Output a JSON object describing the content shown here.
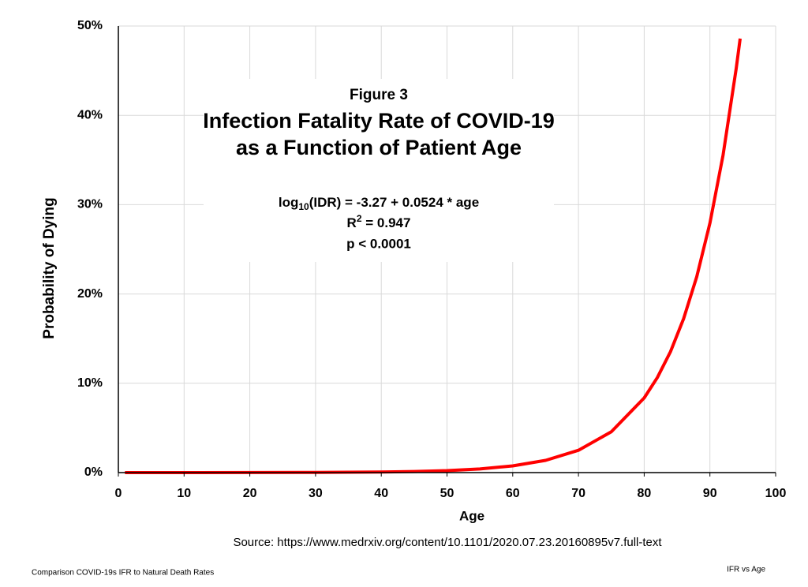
{
  "chart_data": {
    "type": "line",
    "title_lines": [
      "Figure 3",
      "Infection Fatality Rate of COVID-19",
      "as a Function of Patient Age"
    ],
    "equation": {
      "base": "log",
      "subscript": "10",
      "rest": "(IDR) = -3.27 + 0.0524 * age"
    },
    "r_squared": {
      "base": "R",
      "superscript": "2",
      "rest": " = 0.947"
    },
    "p_value": "p < 0.0001",
    "xlabel": "Age",
    "ylabel": "Probability of Dying",
    "source": "Source:  https://www.medrxiv.org/content/10.1101/2020.07.23.20160895v7.full-text",
    "footer_left": "Comparison COVID-19s IFR to Natural Death Rates",
    "footer_right": "IFR vs Age",
    "x": [
      1,
      10,
      20,
      30,
      40,
      45,
      50,
      55,
      60,
      65,
      70,
      75,
      80,
      82,
      84,
      86,
      88,
      90,
      92,
      94,
      94.6
    ],
    "series": [
      {
        "name": "IFR",
        "color": "#ff0000",
        "values": [
          0.0006,
          0.0018,
          0.006,
          0.02,
          0.067,
          0.12,
          0.22,
          0.41,
          0.75,
          1.37,
          2.5,
          4.57,
          8.36,
          10.64,
          13.54,
          17.24,
          21.94,
          27.93,
          35.55,
          45.25,
          48.6
        ]
      }
    ],
    "xlim": [
      0,
      100
    ],
    "xticks": [
      0,
      10,
      20,
      30,
      40,
      50,
      60,
      70,
      80,
      90,
      100
    ],
    "ylim": [
      0,
      50
    ],
    "yticks": [
      {
        "value": 0,
        "label": "0%"
      },
      {
        "value": 10,
        "label": "10%"
      },
      {
        "value": 20,
        "label": "20%"
      },
      {
        "value": 30,
        "label": "30%"
      },
      {
        "value": 40,
        "label": "40%"
      },
      {
        "value": 50,
        "label": "50%"
      }
    ],
    "grid": true
  }
}
